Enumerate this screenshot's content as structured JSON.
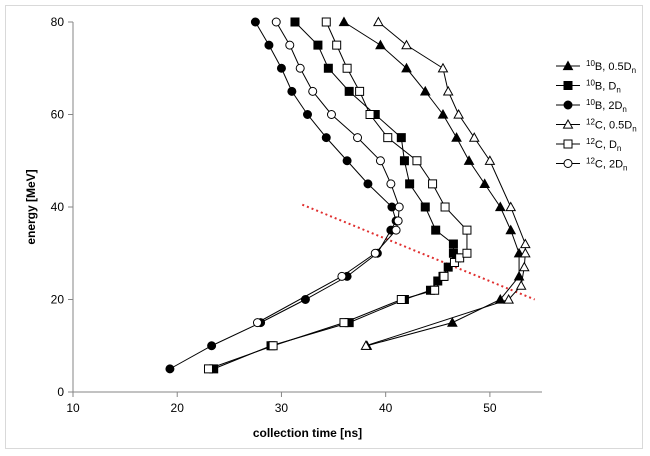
{
  "chart_data": {
    "type": "line",
    "xlabel": "collection time [ns]",
    "ylabel": "energy [MeV]",
    "xlim": [
      10,
      55
    ],
    "ylim": [
      0,
      80
    ],
    "xticks": [
      "10",
      "20",
      "30",
      "40",
      "50"
    ],
    "yticks": [
      "0",
      "20",
      "40",
      "60",
      "80"
    ],
    "grid": false,
    "legend_position": "right",
    "series": [
      {
        "legend_sup": "10",
        "legend_main": "B, 0.5D",
        "legend_sub": "n",
        "marker": "triangle",
        "filled": true,
        "color": "#000000",
        "points": [
          [
            38.2,
            10
          ],
          [
            46.4,
            15
          ],
          [
            51,
            20
          ],
          [
            52.8,
            25
          ],
          [
            52.8,
            30
          ],
          [
            52.0,
            35
          ],
          [
            51,
            40
          ],
          [
            49.5,
            45
          ],
          [
            48.0,
            50
          ],
          [
            46.8,
            55
          ],
          [
            45.5,
            60
          ],
          [
            43.8,
            65
          ],
          [
            42.0,
            70
          ],
          [
            39.5,
            75
          ],
          [
            36.0,
            80
          ]
        ]
      },
      {
        "legend_sup": "10",
        "legend_main": "B, D",
        "legend_sub": "n",
        "marker": "square",
        "filled": true,
        "color": "#000000",
        "points": [
          [
            23.5,
            5
          ],
          [
            29,
            10
          ],
          [
            36.5,
            15
          ],
          [
            41.8,
            20
          ],
          [
            44.3,
            22
          ],
          [
            45,
            24
          ],
          [
            45.5,
            25
          ],
          [
            46,
            27
          ],
          [
            46.8,
            29
          ],
          [
            46.5,
            30
          ],
          [
            46.5,
            32
          ],
          [
            44.8,
            35
          ],
          [
            43.8,
            40
          ],
          [
            42.3,
            45
          ],
          [
            41.8,
            50
          ],
          [
            41.5,
            55
          ],
          [
            39,
            60
          ],
          [
            36.5,
            65
          ],
          [
            34.5,
            70
          ],
          [
            33.5,
            75
          ],
          [
            31.3,
            80
          ]
        ]
      },
      {
        "legend_sup": "10",
        "legend_main": "B, 2D",
        "legend_sub": "n",
        "marker": "circle",
        "filled": true,
        "color": "#000000",
        "points": [
          [
            19.3,
            5
          ],
          [
            23.3,
            10
          ],
          [
            28.0,
            15
          ],
          [
            32.3,
            20
          ],
          [
            36.3,
            25
          ],
          [
            39.2,
            30
          ],
          [
            40.5,
            35
          ],
          [
            41,
            37
          ],
          [
            40.6,
            40
          ],
          [
            38.3,
            45
          ],
          [
            36.3,
            50
          ],
          [
            34.3,
            55
          ],
          [
            32.5,
            60
          ],
          [
            31.0,
            65
          ],
          [
            30.0,
            70
          ],
          [
            28.8,
            75
          ],
          [
            27.5,
            80
          ]
        ]
      },
      {
        "legend_sup": "12",
        "legend_main": "C, 0.5D",
        "legend_sub": "n",
        "marker": "triangle",
        "filled": false,
        "color": "#000000",
        "points": [
          [
            38.1,
            10
          ],
          [
            51.8,
            20
          ],
          [
            53,
            23
          ],
          [
            53.3,
            27
          ],
          [
            53.4,
            30
          ],
          [
            53.4,
            32
          ],
          [
            52,
            40
          ],
          [
            50.0,
            50
          ],
          [
            48.5,
            55
          ],
          [
            47.0,
            60
          ],
          [
            46.0,
            65
          ],
          [
            45.5,
            70
          ],
          [
            42.0,
            75
          ],
          [
            39.3,
            80
          ]
        ]
      },
      {
        "legend_sup": "12",
        "legend_main": "C, D",
        "legend_sub": "n",
        "marker": "square",
        "filled": false,
        "color": "#000000",
        "points": [
          [
            23.0,
            5
          ],
          [
            29.2,
            10
          ],
          [
            36.0,
            15
          ],
          [
            41.5,
            20
          ],
          [
            44.7,
            22
          ],
          [
            45.6,
            25
          ],
          [
            46.6,
            28
          ],
          [
            47.1,
            29
          ],
          [
            47.8,
            30
          ],
          [
            47.8,
            35
          ],
          [
            45.7,
            40
          ],
          [
            44.5,
            45
          ],
          [
            43.0,
            50
          ],
          [
            40.2,
            55
          ],
          [
            38.5,
            60
          ],
          [
            37.5,
            65
          ],
          [
            36.3,
            70
          ],
          [
            35.3,
            75
          ],
          [
            34.3,
            80
          ]
        ]
      },
      {
        "legend_sup": "12",
        "legend_main": "C, 2D",
        "legend_sub": "n",
        "marker": "circle",
        "filled": false,
        "color": "#000000",
        "points": [
          [
            27.7,
            15
          ],
          [
            35.8,
            25
          ],
          [
            39.0,
            30
          ],
          [
            41.0,
            35
          ],
          [
            41.2,
            37
          ],
          [
            41.3,
            40
          ],
          [
            40.5,
            45
          ],
          [
            39.5,
            50
          ],
          [
            37.3,
            55
          ],
          [
            34.8,
            60
          ],
          [
            33.0,
            65
          ],
          [
            31.8,
            70
          ],
          [
            30.8,
            75
          ],
          [
            29.5,
            80
          ]
        ]
      }
    ],
    "trend_line": {
      "color": "#e03030",
      "style": "dotted",
      "points": [
        [
          32,
          40.5
        ],
        [
          54.3,
          20
        ]
      ]
    }
  }
}
